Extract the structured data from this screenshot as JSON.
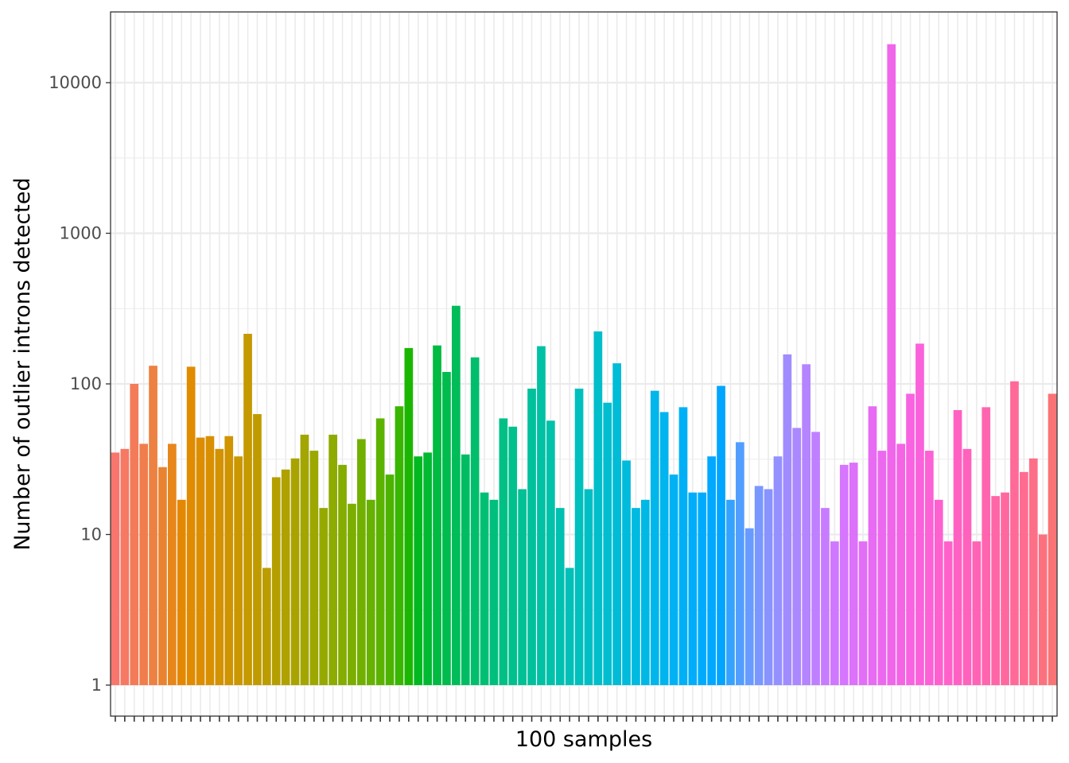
{
  "chart_data": {
    "type": "bar",
    "xlabel": "100 samples",
    "ylabel": "Number of outlier introns detected",
    "y_scale": "log10",
    "ylim": [
      0.55,
      28000
    ],
    "y_ticks": [
      1,
      10,
      100,
      1000,
      10000
    ],
    "y_tick_labels": [
      "1",
      "10",
      "100",
      "1000",
      "10000"
    ],
    "grid": true,
    "legend": "none",
    "x_tick_labels_shown": false,
    "values": [
      35,
      37,
      100,
      40,
      132,
      28,
      40,
      17,
      130,
      44,
      45,
      37,
      45,
      33,
      215,
      63,
      6,
      24,
      27,
      32,
      46,
      36,
      15,
      46,
      29,
      16,
      43,
      17,
      59,
      25,
      71,
      173,
      33,
      35,
      180,
      120,
      330,
      34,
      150,
      19,
      17,
      59,
      52,
      20,
      93,
      178,
      57,
      15,
      6,
      93,
      20,
      223,
      75,
      137,
      31,
      15,
      17,
      90,
      65,
      25,
      70,
      19,
      19,
      33,
      97,
      17,
      41,
      11,
      21,
      20,
      33,
      157,
      51,
      135,
      48,
      15,
      9,
      29,
      30,
      9,
      71,
      36,
      18000,
      40,
      86,
      185,
      36,
      17,
      9,
      67,
      37,
      9,
      70,
      18,
      19,
      104,
      26,
      32,
      10,
      86
    ]
  }
}
